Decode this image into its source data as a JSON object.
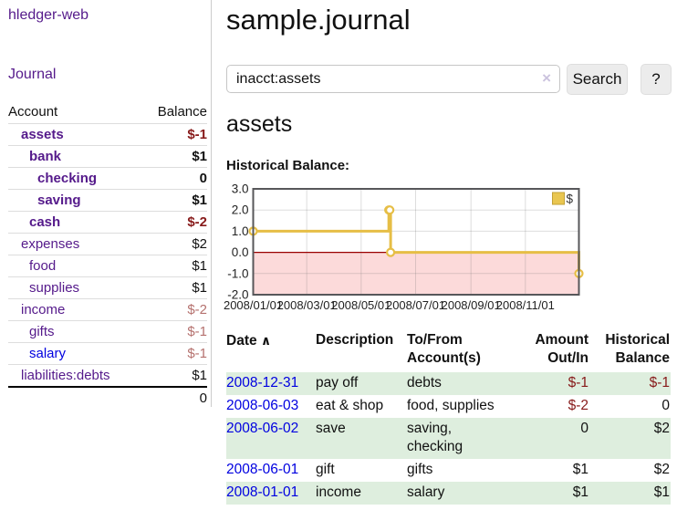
{
  "app": {
    "title": "hledger-web",
    "nav_journal": "Journal"
  },
  "sidebar": {
    "col_account": "Account",
    "col_balance": "Balance",
    "accounts": [
      {
        "label": "assets",
        "depth": 1,
        "bold": true,
        "link_tone": "visited",
        "balance": "$-1",
        "tone": "neg-strong",
        "bal_bold": true
      },
      {
        "label": "bank",
        "depth": 2,
        "bold": true,
        "link_tone": "visited",
        "balance": "$1",
        "tone": "plain",
        "bal_bold": true
      },
      {
        "label": "checking",
        "depth": 3,
        "bold": true,
        "link_tone": "visited",
        "balance": "0",
        "tone": "plain",
        "bal_bold": true
      },
      {
        "label": "saving",
        "depth": 3,
        "bold": true,
        "link_tone": "visited",
        "balance": "$1",
        "tone": "plain",
        "bal_bold": true
      },
      {
        "label": "cash",
        "depth": 2,
        "bold": true,
        "link_tone": "visited",
        "balance": "$-2",
        "tone": "neg-strong",
        "bal_bold": true
      },
      {
        "label": "expenses",
        "depth": 1,
        "bold": false,
        "link_tone": "visited",
        "balance": "$2",
        "tone": "plain",
        "bal_bold": false
      },
      {
        "label": "food",
        "depth": 2,
        "bold": false,
        "link_tone": "visited",
        "balance": "$1",
        "tone": "plain",
        "bal_bold": false
      },
      {
        "label": "supplies",
        "depth": 2,
        "bold": false,
        "link_tone": "visited",
        "balance": "$1",
        "tone": "plain",
        "bal_bold": false
      },
      {
        "label": "income",
        "depth": 1,
        "bold": false,
        "link_tone": "visited",
        "balance": "$-2",
        "tone": "neg-muted",
        "bal_bold": false
      },
      {
        "label": "gifts",
        "depth": 2,
        "bold": false,
        "link_tone": "visited",
        "balance": "$-1",
        "tone": "neg-muted",
        "bal_bold": false
      },
      {
        "label": "salary",
        "depth": 2,
        "bold": false,
        "link_tone": "blue",
        "balance": "$-1",
        "tone": "neg-muted",
        "bal_bold": false
      },
      {
        "label": "liabilities:debts",
        "depth": 1,
        "bold": false,
        "link_tone": "visited",
        "balance": "$1",
        "tone": "plain",
        "bal_bold": false
      }
    ],
    "total": "0"
  },
  "main": {
    "title": "sample.journal",
    "search": {
      "value": "inacct:assets",
      "clear_icon": "×",
      "button": "Search",
      "help_button": "?"
    },
    "section_title": "assets",
    "chart_label": "Historical Balance:",
    "register": {
      "sort_indicator": "∧",
      "headers": {
        "date": "Date",
        "description": "Description",
        "accounts": "To/From Account(s)",
        "amount": "Amount Out/In",
        "balance": "Historical Balance"
      },
      "rows": [
        {
          "date": "2008-12-31",
          "description": "pay off",
          "accounts": "debts",
          "amount": "$-1",
          "amount_neg": true,
          "balance": "$-1",
          "balance_neg": true,
          "shaded": true
        },
        {
          "date": "2008-06-03",
          "description": "eat & shop",
          "accounts": "food, supplies",
          "amount": "$-2",
          "amount_neg": true,
          "balance": "0",
          "balance_neg": false,
          "shaded": false
        },
        {
          "date": "2008-06-02",
          "description": "save",
          "accounts": "saving,\nchecking",
          "amount": "0",
          "amount_neg": false,
          "balance": "$2",
          "balance_neg": false,
          "shaded": true
        },
        {
          "date": "2008-06-01",
          "description": "gift",
          "accounts": "gifts",
          "amount": "$1",
          "amount_neg": false,
          "balance": "$2",
          "balance_neg": false,
          "shaded": false
        },
        {
          "date": "2008-01-01",
          "description": "income",
          "accounts": "salary",
          "amount": "$1",
          "amount_neg": false,
          "balance": "$1",
          "balance_neg": false,
          "shaded": true
        }
      ]
    }
  },
  "chart_data": {
    "type": "line",
    "step": "after",
    "title": "Historical Balance:",
    "series": [
      {
        "name": "$",
        "points": [
          [
            "2008-01-01",
            1
          ],
          [
            "2008-06-01",
            2
          ],
          [
            "2008-06-02",
            2
          ],
          [
            "2008-06-03",
            0
          ],
          [
            "2008-12-31",
            -1
          ]
        ]
      }
    ],
    "x_domain": [
      "2008-01-01",
      "2008-12-31"
    ],
    "x_ticks": [
      "2008/01/01",
      "2008/03/01",
      "2008/05/01",
      "2008/07/01",
      "2008/09/01",
      "2008/11/01"
    ],
    "y_ticks": [
      "3.0",
      "2.0",
      "1.0",
      "0.0",
      "-1.0",
      "-2.0"
    ],
    "ylim": [
      -2,
      3
    ],
    "grid": true,
    "legend_position": "top-right",
    "legend_label": "$",
    "colors": {
      "line": "#e6be46",
      "marker_fill": "#ffffff",
      "negative_region": "#fcdada",
      "zero_line": "#990000",
      "grid": "#dedede",
      "border": "#57575a",
      "legend_fill": "#e9c650",
      "legend_border": "#c2a136",
      "tick_text": "#222222"
    }
  }
}
